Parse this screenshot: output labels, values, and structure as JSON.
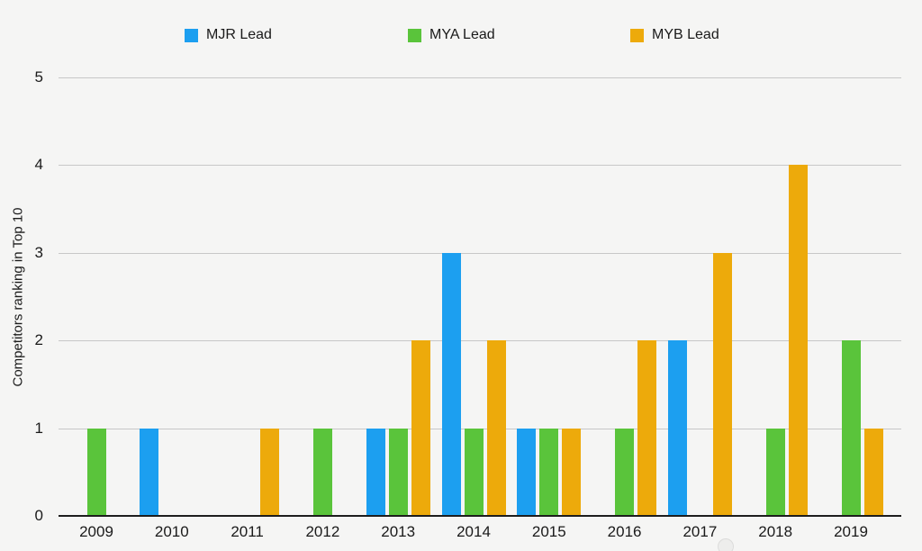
{
  "chart_data": {
    "type": "bar",
    "title": "",
    "categories": [
      "2009",
      "2010",
      "2011",
      "2012",
      "2013",
      "2014",
      "2015",
      "2016",
      "2017",
      "2018",
      "2019"
    ],
    "series": [
      {
        "name": "MJR Lead",
        "color": "#1c9ff0",
        "values": [
          0,
          1,
          0,
          0,
          1,
          3,
          1,
          0,
          2,
          0,
          0
        ]
      },
      {
        "name": "MYA Lead",
        "color": "#5ac43b",
        "values": [
          1,
          0,
          0,
          1,
          1,
          1,
          1,
          1,
          0,
          1,
          2
        ]
      },
      {
        "name": "MYB Lead",
        "color": "#edaa0b",
        "values": [
          0,
          0,
          1,
          0,
          2,
          2,
          1,
          2,
          3,
          4,
          1
        ]
      }
    ],
    "xlabel": "",
    "ylabel": "Competitors ranking in Top 10",
    "ylim": [
      0,
      5
    ],
    "yticks": [
      0,
      1,
      2,
      3,
      4,
      5
    ],
    "grid": true,
    "legend_position": "top"
  },
  "colors": {
    "background": "#f5f5f4",
    "gridline": "#c7c7c7",
    "axis_line": "#1d1d1d",
    "text": "#1a1a1a"
  }
}
